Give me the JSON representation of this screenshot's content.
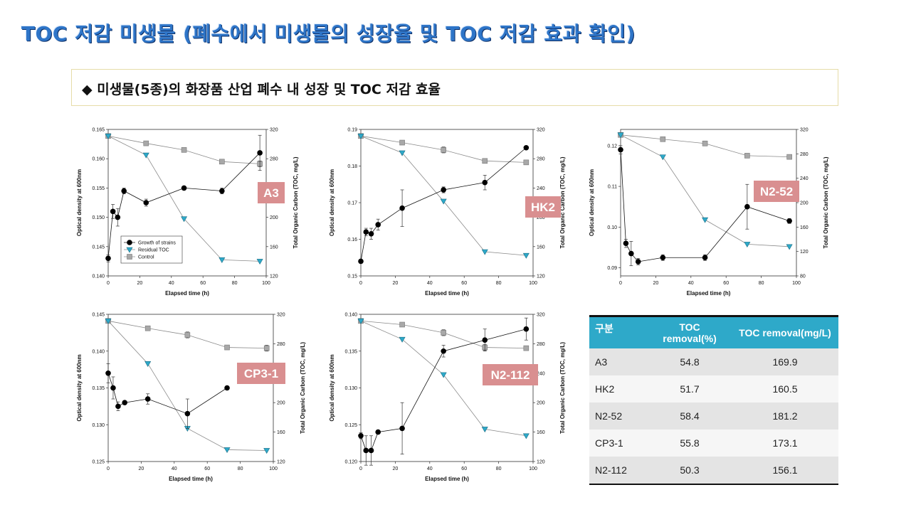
{
  "page": {
    "title": "TOC 저감 미생물 (폐수에서 미생물의 성장율 및 TOC 저감 효과 확인)",
    "subtitle": "◆ 미생물(5종)의 화장품 산업 폐수 내 성장 및 TOC 저감 효율"
  },
  "colors": {
    "title": "#2e75c8",
    "tag_fill": "#d98f90",
    "table_header": "#2ea9c9",
    "growth": "#000000",
    "residual": "#2ea9c9",
    "control": "#a8a8a8"
  },
  "chart_data": [
    {
      "id": "A3",
      "type": "line",
      "tag": "A3",
      "xlabel": "Elapsed time (h)",
      "ylabel": "Optical density at 600nm",
      "y2label": "Total Organic Carbon (TOC, mg/L)",
      "xlim": [
        0,
        100
      ],
      "xticks": [
        0,
        20,
        40,
        60,
        80,
        100
      ],
      "ylim": [
        0.14,
        0.165
      ],
      "yticks": [
        0.14,
        0.145,
        0.15,
        0.155,
        0.16,
        0.165
      ],
      "ytick_labels": [
        "0.140",
        "0.145",
        "0.150",
        "0.155",
        "0.160",
        "0.165"
      ],
      "y2lim": [
        120,
        320
      ],
      "y2ticks": [
        120,
        160,
        200,
        240,
        280,
        320
      ],
      "legend": [
        "Growth of strains",
        "Residual TOC",
        "Control"
      ],
      "series": [
        {
          "name": "Growth of strains",
          "marker": "circle",
          "x": [
            0,
            3,
            6,
            10,
            24,
            48,
            72,
            96
          ],
          "y": [
            0.143,
            0.151,
            0.15,
            0.1545,
            0.1525,
            0.155,
            0.1545,
            0.161
          ],
          "err": [
            0.0006,
            0.0012,
            0.0015,
            0.0005,
            0.0006,
            0,
            0.0005,
            0.003
          ]
        },
        {
          "name": "Residual TOC",
          "axis": "right",
          "marker": "triangle",
          "x": [
            0,
            24,
            48,
            72,
            96
          ],
          "y": [
            311,
            285,
            198,
            142,
            140
          ]
        },
        {
          "name": "Control",
          "axis": "right",
          "marker": "square",
          "x": [
            0,
            24,
            48,
            72,
            96
          ],
          "y": [
            311,
            301,
            292,
            276,
            273
          ],
          "err": [
            0,
            0,
            3,
            0,
            4
          ]
        }
      ]
    },
    {
      "id": "HK2",
      "type": "line",
      "tag": "HK2",
      "xlabel": "Elapsed time (h)",
      "ylabel": "Optical density at 600nm",
      "y2label": "Total Organic Carbon (TOC, mg/L)",
      "xlim": [
        0,
        100
      ],
      "xticks": [
        0,
        20,
        40,
        60,
        80,
        100
      ],
      "ylim": [
        0.15,
        0.19
      ],
      "yticks": [
        0.15,
        0.16,
        0.17,
        0.18,
        0.19
      ],
      "ytick_labels": [
        "0.15",
        "0.16",
        "0.17",
        "0.18",
        "0.19"
      ],
      "y2lim": [
        120,
        320
      ],
      "y2ticks": [
        120,
        160,
        200,
        240,
        280,
        320
      ],
      "series": [
        {
          "name": "Growth of strains",
          "marker": "circle",
          "x": [
            0,
            3,
            6,
            10,
            24,
            48,
            72,
            96
          ],
          "y": [
            0.154,
            0.162,
            0.1615,
            0.164,
            0.1685,
            0.1735,
            0.1755,
            0.185
          ],
          "err": [
            0,
            0.001,
            0.0015,
            0.0015,
            0.005,
            0.0008,
            0.002,
            0
          ]
        },
        {
          "name": "Residual TOC",
          "axis": "right",
          "marker": "triangle",
          "x": [
            0,
            24,
            48,
            72,
            96
          ],
          "y": [
            311,
            288,
            222,
            153,
            148
          ]
        },
        {
          "name": "Control",
          "axis": "right",
          "marker": "square",
          "x": [
            0,
            24,
            48,
            72,
            96
          ],
          "y": [
            311,
            302,
            292,
            277,
            275
          ],
          "err": [
            0,
            0,
            4,
            0,
            0
          ]
        }
      ]
    },
    {
      "id": "N2-52",
      "type": "line",
      "tag": "N2-52",
      "xlabel": "Elapsed time (h)",
      "ylabel": "Optical density at 600nm",
      "y2label": "Total Organic Carbon (TOC, mg/L)",
      "xlim": [
        0,
        100
      ],
      "xticks": [
        0,
        20,
        40,
        60,
        80,
        100
      ],
      "ylim": [
        0.088,
        0.124
      ],
      "yticks": [
        0.09,
        0.1,
        0.11,
        0.12
      ],
      "ytick_labels": [
        "0.09",
        "0.10",
        "0.11",
        "0.12"
      ],
      "y2lim": [
        80,
        320
      ],
      "y2ticks": [
        80,
        120,
        160,
        200,
        240,
        280,
        320
      ],
      "series": [
        {
          "name": "Growth of strains",
          "marker": "circle",
          "x": [
            0,
            3,
            6,
            10,
            24,
            48,
            72,
            96
          ],
          "y": [
            0.119,
            0.096,
            0.0935,
            0.0915,
            0.0925,
            0.0925,
            0.105,
            0.1015
          ],
          "err": [
            0.001,
            0.001,
            0.003,
            0.0008,
            0.0007,
            0.0007,
            0.0055,
            0.0006
          ]
        },
        {
          "name": "Residual TOC",
          "axis": "right",
          "marker": "triangle",
          "x": [
            0,
            24,
            48,
            72,
            96
          ],
          "y": [
            311,
            275,
            172,
            132,
            128
          ]
        },
        {
          "name": "Control",
          "axis": "right",
          "marker": "square",
          "x": [
            0,
            24,
            48,
            72,
            96
          ],
          "y": [
            311,
            304,
            297,
            277,
            275
          ],
          "err": [
            0,
            0,
            4,
            0,
            0
          ]
        }
      ]
    },
    {
      "id": "CP3-1",
      "type": "line",
      "tag": "CP3-1",
      "xlabel": "Elapsed time (h)",
      "ylabel": "Optical density at 600nm",
      "y2label": "Total Organic Carbon (TOC, mg/L)",
      "xlim": [
        0,
        100
      ],
      "xticks": [
        0,
        20,
        40,
        60,
        80,
        100
      ],
      "ylim": [
        0.125,
        0.145
      ],
      "yticks": [
        0.125,
        0.13,
        0.135,
        0.14,
        0.145
      ],
      "ytick_labels": [
        "0.125",
        "0.130",
        "0.135",
        "0.140",
        "0.145"
      ],
      "y2lim": [
        120,
        320
      ],
      "y2ticks": [
        120,
        160,
        200,
        240,
        280,
        320
      ],
      "series": [
        {
          "name": "Growth of strains",
          "marker": "circle",
          "x": [
            0,
            3,
            6,
            10,
            24,
            48,
            72
          ],
          "y": [
            0.137,
            0.135,
            0.1325,
            0.133,
            0.1335,
            0.1315,
            0.135
          ],
          "err": [
            0.0013,
            0.0015,
            0.0006,
            0,
            0.0007,
            0.002,
            0
          ]
        },
        {
          "name": "Residual TOC",
          "axis": "right",
          "marker": "triangle",
          "x": [
            0,
            24,
            48,
            72,
            96
          ],
          "y": [
            311,
            253,
            165,
            136,
            135
          ]
        },
        {
          "name": "Control",
          "axis": "right",
          "marker": "square",
          "x": [
            0,
            24,
            48,
            72,
            96
          ],
          "y": [
            311,
            301,
            292,
            275,
            274
          ],
          "err": [
            0,
            0,
            4,
            0,
            4
          ]
        }
      ]
    },
    {
      "id": "N2-112",
      "type": "line",
      "tag": "N2-112",
      "xlabel": "Elapsed time (h)",
      "ylabel": "Optical density at 600nm",
      "y2label": "Total Organic Carbon (TOC, mg/L)",
      "xlim": [
        0,
        100
      ],
      "xticks": [
        0,
        20,
        40,
        60,
        80,
        100
      ],
      "ylim": [
        0.12,
        0.14
      ],
      "yticks": [
        0.12,
        0.125,
        0.13,
        0.135,
        0.14
      ],
      "ytick_labels": [
        "0.120",
        "0.125",
        "0.130",
        "0.135",
        "0.140"
      ],
      "y2lim": [
        120,
        320
      ],
      "y2ticks": [
        120,
        160,
        200,
        240,
        280,
        320
      ],
      "series": [
        {
          "name": "Growth of strains",
          "marker": "circle",
          "x": [
            0,
            3,
            6,
            10,
            24,
            48,
            72,
            96
          ],
          "y": [
            0.1235,
            0.1215,
            0.1215,
            0.124,
            0.1245,
            0.135,
            0.1365,
            0.138
          ],
          "err": [
            0.0004,
            0.002,
            0.002,
            0,
            0.0035,
            0.0008,
            0.0015,
            0.0015
          ]
        },
        {
          "name": "Residual TOC",
          "axis": "right",
          "marker": "triangle",
          "x": [
            0,
            24,
            48,
            72,
            96
          ],
          "y": [
            311,
            286,
            238,
            164,
            155
          ]
        },
        {
          "name": "Control",
          "axis": "right",
          "marker": "square",
          "x": [
            0,
            24,
            48,
            72,
            96
          ],
          "y": [
            311,
            306,
            295,
            275,
            274
          ],
          "err": [
            0,
            0,
            4,
            4,
            0
          ]
        }
      ]
    },
    {
      "id": "toc-removal",
      "type": "table",
      "columns": [
        "구분",
        "TOC removal(%)",
        "TOC removal(mg/L)"
      ],
      "rows": [
        [
          "A3",
          "54.8",
          "169.9"
        ],
        [
          "HK2",
          "51.7",
          "160.5"
        ],
        [
          "N2-52",
          "58.4",
          "181.2"
        ],
        [
          "CP3-1",
          "55.8",
          "173.1"
        ],
        [
          "N2-112",
          "50.3",
          "156.1"
        ]
      ]
    }
  ]
}
